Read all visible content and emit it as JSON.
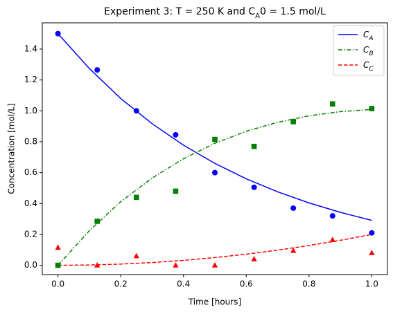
{
  "chart_data": {
    "type": "line",
    "title": [
      "Experiment 3: T = 250 K and C",
      "A",
      "0 = 1.5 mol/L"
    ],
    "xlabel": "Time [hours]",
    "ylabel": "Concentration [mol/L]",
    "xlim": [
      -0.05,
      1.05
    ],
    "ylim": [
      -0.06,
      1.57
    ],
    "xticks": [
      {
        "value": 0,
        "label": "0.0"
      },
      {
        "value": 0.2,
        "label": "0.2"
      },
      {
        "value": 0.4,
        "label": "0.4"
      },
      {
        "value": 0.6,
        "label": "0.6"
      },
      {
        "value": 0.8,
        "label": "0.8"
      },
      {
        "value": 1,
        "label": "1.0"
      }
    ],
    "yticks": [
      {
        "value": 0,
        "label": "0.0"
      },
      {
        "value": 0.2,
        "label": "0.2"
      },
      {
        "value": 0.4,
        "label": "0.4"
      },
      {
        "value": 0.6,
        "label": "0.6"
      },
      {
        "value": 0.8,
        "label": "0.8"
      },
      {
        "value": 1,
        "label": "1.0"
      },
      {
        "value": 1.2,
        "label": "1.2"
      },
      {
        "value": 1.4,
        "label": "1.4"
      }
    ],
    "legend": "upper right",
    "x": [
      0,
      0.1,
      0.2,
      0.3,
      0.4,
      0.5,
      0.6,
      0.7,
      0.8,
      0.9,
      1.0
    ],
    "series": [
      {
        "name": [
          "C",
          "A"
        ],
        "color": "#0000ff",
        "dash": "solid",
        "values": [
          1.5,
          1.274,
          1.08,
          0.917,
          0.778,
          0.66,
          0.56,
          0.476,
          0.404,
          0.343,
          0.291
        ]
      },
      {
        "name": [
          "C",
          "B"
        ],
        "color": "#008000",
        "dash": "dashdot",
        "values": [
          0,
          0.224,
          0.412,
          0.565,
          0.69,
          0.79,
          0.868,
          0.926,
          0.968,
          0.995,
          1.009
        ]
      },
      {
        "name": [
          "C",
          "C"
        ],
        "color": "#ff0000",
        "dash": "dashed",
        "values": [
          0,
          0.002,
          0.008,
          0.018,
          0.032,
          0.05,
          0.072,
          0.098,
          0.128,
          0.162,
          0.2
        ]
      }
    ],
    "points": {
      "x": [
        0,
        0.125,
        0.25,
        0.375,
        0.5,
        0.625,
        0.75,
        0.875,
        1.0
      ],
      "series": [
        {
          "color": "#0000ff",
          "marker": "circle",
          "values": [
            1.5,
            1.265,
            1.0,
            0.845,
            0.6,
            0.505,
            0.37,
            0.32,
            0.21
          ]
        },
        {
          "color": "#008000",
          "marker": "square",
          "values": [
            0,
            0.285,
            0.44,
            0.48,
            0.815,
            0.77,
            0.93,
            1.045,
            1.015
          ]
        },
        {
          "color": "#ff0000",
          "marker": "triangle",
          "values": [
            0.115,
            0,
            0.06,
            0,
            0,
            0.04,
            0.095,
            0.165,
            0.08
          ]
        }
      ]
    }
  }
}
